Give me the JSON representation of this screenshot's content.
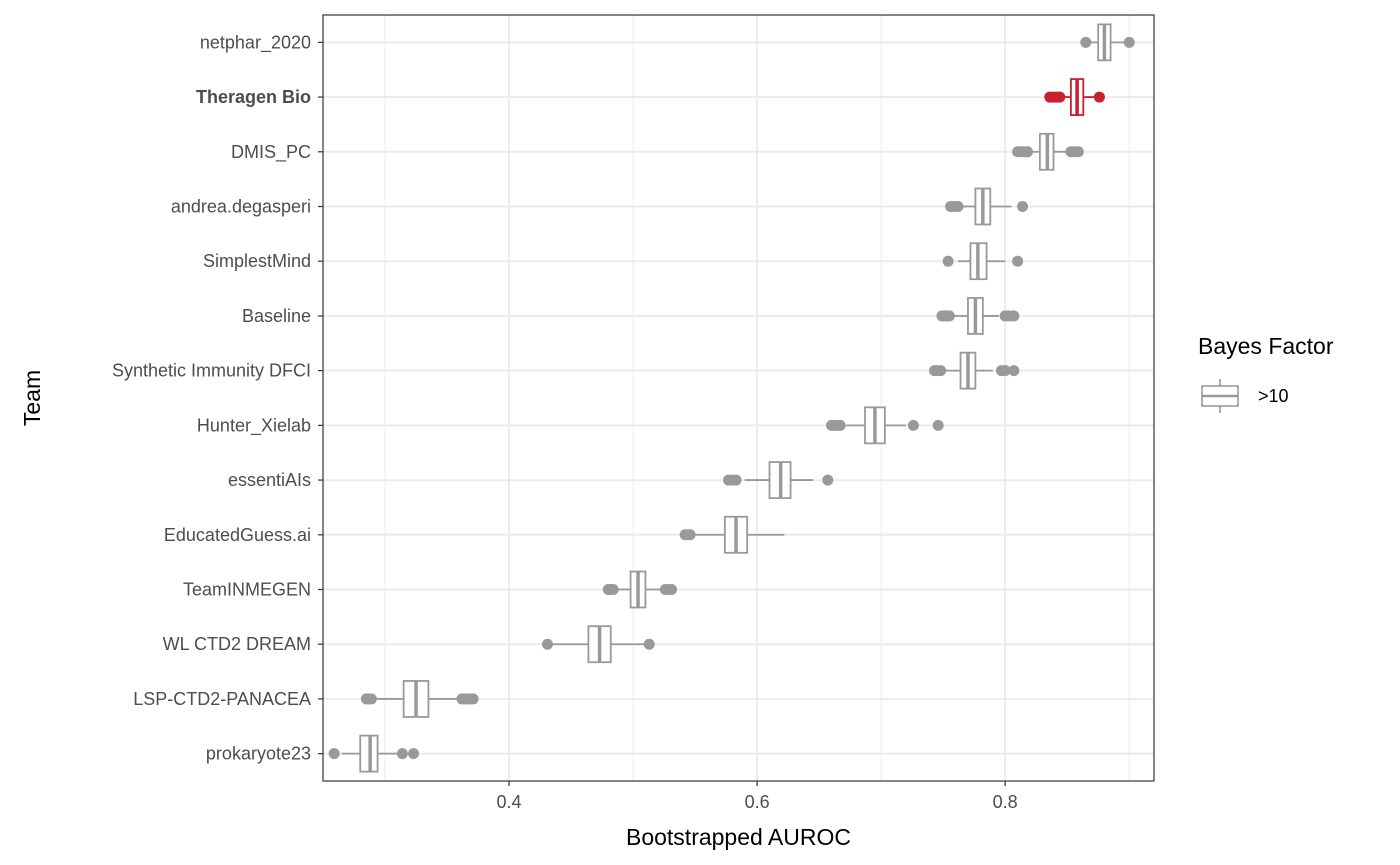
{
  "chart_data": {
    "type": "boxplot",
    "orientation": "horizontal",
    "xlabel": "Bootstrapped AUROC",
    "ylabel": "Team",
    "xlim": [
      0.25,
      0.92
    ],
    "xticks": [
      "0.4",
      "0.6",
      "0.8"
    ],
    "xtick_values": [
      0.4,
      0.6,
      0.8
    ],
    "grid": true,
    "legend": {
      "title": "Bayes Factor",
      "entries": [
        ">10"
      ],
      "placement": "right"
    },
    "colors": {
      "default": "#999999",
      "highlight": "#c8202f",
      "grid": "#ebebeb",
      "panel_border": "#333333"
    },
    "highlighted_team": "Theragen Bio",
    "teams": [
      {
        "name": "netphar_2020",
        "lw": 0.865,
        "q1": 0.875,
        "median": 0.88,
        "q3": 0.885,
        "uw": 0.9,
        "outliers": [
          0.865,
          0.9
        ]
      },
      {
        "name": "Theragen Bio",
        "lw": 0.845,
        "q1": 0.853,
        "median": 0.858,
        "q3": 0.863,
        "uw": 0.872,
        "outliers": [
          0.836,
          0.838,
          0.84,
          0.842,
          0.844,
          0.876
        ],
        "highlight": true
      },
      {
        "name": "DMIS_PC",
        "lw": 0.82,
        "q1": 0.828,
        "median": 0.834,
        "q3": 0.839,
        "uw": 0.85,
        "outliers": [
          0.81,
          0.812,
          0.814,
          0.816,
          0.818,
          0.853,
          0.856,
          0.859
        ]
      },
      {
        "name": "andrea.degasperi",
        "lw": 0.765,
        "q1": 0.776,
        "median": 0.782,
        "q3": 0.788,
        "uw": 0.805,
        "outliers": [
          0.756,
          0.759,
          0.762,
          0.814
        ]
      },
      {
        "name": "SimplestMind",
        "lw": 0.762,
        "q1": 0.772,
        "median": 0.778,
        "q3": 0.785,
        "uw": 0.8,
        "outliers": [
          0.754,
          0.81
        ]
      },
      {
        "name": "Baseline",
        "lw": 0.758,
        "q1": 0.77,
        "median": 0.776,
        "q3": 0.782,
        "uw": 0.795,
        "outliers": [
          0.749,
          0.751,
          0.753,
          0.755,
          0.8,
          0.803,
          0.807
        ]
      },
      {
        "name": "Synthetic Immunity DFCI",
        "lw": 0.752,
        "q1": 0.764,
        "median": 0.77,
        "q3": 0.776,
        "uw": 0.79,
        "outliers": [
          0.743,
          0.745,
          0.748,
          0.797,
          0.8,
          0.807
        ]
      },
      {
        "name": "Hunter_Xielab",
        "lw": 0.672,
        "q1": 0.687,
        "median": 0.695,
        "q3": 0.703,
        "uw": 0.72,
        "outliers": [
          0.66,
          0.662,
          0.664,
          0.667,
          0.726,
          0.746
        ]
      },
      {
        "name": "essentiAIs",
        "lw": 0.59,
        "q1": 0.61,
        "median": 0.619,
        "q3": 0.627,
        "uw": 0.645,
        "outliers": [
          0.577,
          0.58,
          0.583,
          0.657
        ]
      },
      {
        "name": "EducatedGuess.ai",
        "lw": 0.55,
        "q1": 0.574,
        "median": 0.583,
        "q3": 0.592,
        "uw": 0.622,
        "outliers": [
          0.542,
          0.544,
          0.546
        ]
      },
      {
        "name": "TeamINMEGEN",
        "lw": 0.487,
        "q1": 0.498,
        "median": 0.504,
        "q3": 0.51,
        "uw": 0.522,
        "outliers": [
          0.48,
          0.482,
          0.484,
          0.526,
          0.528,
          0.531
        ]
      },
      {
        "name": "WL CTD2 DREAM",
        "lw": 0.432,
        "q1": 0.464,
        "median": 0.473,
        "q3": 0.482,
        "uw": 0.51,
        "outliers": [
          0.431,
          0.513
        ]
      },
      {
        "name": "LSP-CTD2-PANACEA",
        "lw": 0.29,
        "q1": 0.315,
        "median": 0.325,
        "q3": 0.335,
        "uw": 0.36,
        "outliers": [
          0.285,
          0.287,
          0.289,
          0.362,
          0.364,
          0.366,
          0.368,
          0.371
        ]
      },
      {
        "name": "prokaryote23",
        "lw": 0.265,
        "q1": 0.28,
        "median": 0.288,
        "q3": 0.294,
        "uw": 0.31,
        "outliers": [
          0.259,
          0.314,
          0.323
        ]
      }
    ]
  }
}
